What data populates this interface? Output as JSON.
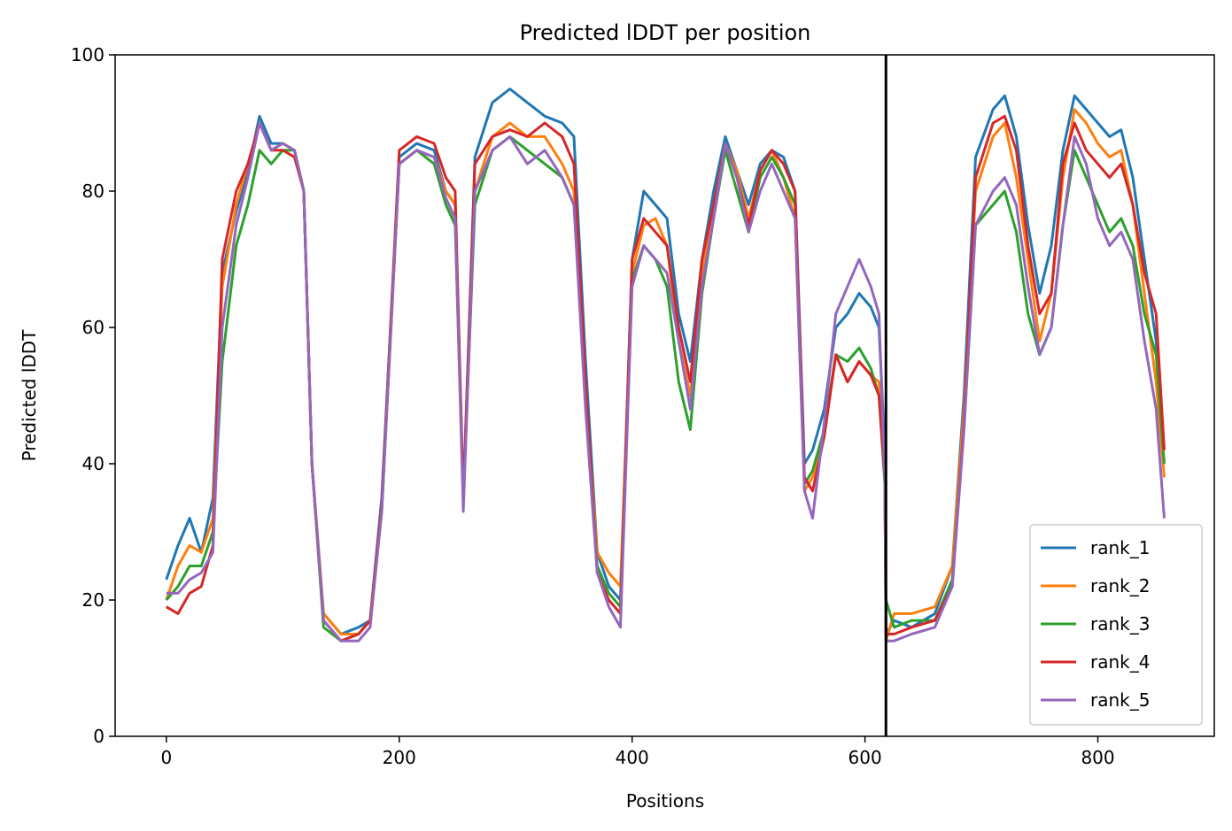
{
  "chart_data": {
    "type": "line",
    "title": "Predicted lDDT per position",
    "xlabel": "Positions",
    "ylabel": "Predicted lDDT",
    "xlim": [
      -44,
      900
    ],
    "ylim": [
      0,
      100
    ],
    "xticks": [
      0,
      200,
      400,
      600,
      800
    ],
    "yticks": [
      0,
      20,
      40,
      60,
      80,
      100
    ],
    "grid": false,
    "legend_position": "lower right",
    "vline_x": 618,
    "x_knots": [
      0,
      10,
      20,
      30,
      40,
      48,
      60,
      70,
      80,
      90,
      100,
      110,
      118,
      125,
      135,
      150,
      165,
      175,
      185,
      200,
      215,
      230,
      240,
      248,
      255,
      265,
      280,
      295,
      310,
      325,
      340,
      350,
      360,
      370,
      380,
      390,
      400,
      410,
      420,
      430,
      440,
      450,
      460,
      470,
      480,
      490,
      500,
      510,
      520,
      530,
      540,
      548,
      555,
      565,
      575,
      585,
      595,
      605,
      612,
      617,
      618,
      625,
      640,
      660,
      675,
      685,
      695,
      710,
      720,
      730,
      740,
      750,
      760,
      770,
      780,
      790,
      800,
      810,
      820,
      830,
      840,
      850,
      857
    ],
    "series": [
      {
        "name": "rank_1",
        "color": "#1f77b4",
        "values": [
          23,
          28,
          32,
          27,
          35,
          68,
          77,
          83,
          91,
          87,
          87,
          86,
          80,
          40,
          18,
          15,
          16,
          17,
          35,
          85,
          87,
          86,
          80,
          78,
          35,
          85,
          93,
          95,
          93,
          91,
          90,
          88,
          55,
          27,
          22,
          20,
          70,
          80,
          78,
          76,
          62,
          55,
          70,
          80,
          88,
          83,
          78,
          84,
          86,
          85,
          80,
          40,
          42,
          48,
          60,
          62,
          65,
          63,
          60,
          42,
          15,
          17,
          16,
          18,
          25,
          50,
          85,
          92,
          94,
          88,
          75,
          65,
          72,
          86,
          94,
          92,
          90,
          88,
          89,
          82,
          70,
          58,
          42
        ]
      },
      {
        "name": "rank_2",
        "color": "#ff7f0e",
        "values": [
          20,
          25,
          28,
          27,
          32,
          66,
          78,
          84,
          90,
          86,
          87,
          86,
          80,
          40,
          18,
          15,
          15,
          17,
          33,
          84,
          86,
          85,
          80,
          78,
          35,
          80,
          88,
          90,
          88,
          88,
          84,
          80,
          50,
          27,
          24,
          22,
          68,
          75,
          76,
          72,
          58,
          50,
          68,
          78,
          87,
          83,
          76,
          83,
          86,
          82,
          76,
          36,
          38,
          44,
          56,
          52,
          55,
          53,
          52,
          38,
          14,
          18,
          18,
          19,
          25,
          48,
          80,
          88,
          90,
          82,
          70,
          58,
          65,
          82,
          92,
          90,
          87,
          85,
          86,
          78,
          65,
          52,
          38
        ]
      },
      {
        "name": "rank_3",
        "color": "#2ca02c",
        "values": [
          20,
          22,
          25,
          25,
          30,
          55,
          72,
          78,
          86,
          84,
          86,
          86,
          80,
          40,
          16,
          14,
          15,
          17,
          33,
          84,
          86,
          84,
          78,
          75,
          35,
          78,
          86,
          88,
          86,
          84,
          82,
          78,
          50,
          25,
          21,
          19,
          67,
          72,
          70,
          66,
          52,
          45,
          65,
          76,
          86,
          80,
          74,
          82,
          85,
          82,
          78,
          37,
          39,
          45,
          56,
          55,
          57,
          54,
          50,
          37,
          20,
          16,
          17,
          17,
          23,
          45,
          75,
          78,
          80,
          74,
          62,
          56,
          60,
          75,
          86,
          82,
          78,
          74,
          76,
          72,
          62,
          56,
          40
        ]
      },
      {
        "name": "rank_4",
        "color": "#d62728",
        "values": [
          19,
          18,
          21,
          22,
          28,
          70,
          80,
          84,
          90,
          86,
          86,
          85,
          80,
          40,
          17,
          14,
          15,
          17,
          34,
          86,
          88,
          87,
          82,
          80,
          35,
          84,
          88,
          89,
          88,
          90,
          88,
          84,
          52,
          24,
          20,
          18,
          70,
          76,
          74,
          72,
          60,
          52,
          70,
          78,
          87,
          82,
          75,
          83,
          86,
          84,
          80,
          38,
          36,
          44,
          56,
          52,
          55,
          53,
          50,
          38,
          15,
          15,
          16,
          17,
          22,
          46,
          82,
          90,
          91,
          86,
          72,
          62,
          65,
          84,
          90,
          86,
          84,
          82,
          84,
          78,
          68,
          62,
          42
        ]
      },
      {
        "name": "rank_5",
        "color": "#9467bd",
        "values": [
          21,
          21,
          23,
          24,
          27,
          60,
          75,
          82,
          90,
          86,
          87,
          86,
          80,
          40,
          17,
          14,
          14,
          16,
          33,
          84,
          86,
          85,
          79,
          76,
          33,
          80,
          86,
          88,
          84,
          86,
          82,
          78,
          48,
          24,
          19,
          16,
          66,
          72,
          70,
          68,
          58,
          48,
          66,
          76,
          87,
          82,
          74,
          80,
          84,
          80,
          76,
          36,
          32,
          46,
          62,
          66,
          70,
          66,
          62,
          38,
          14,
          14,
          15,
          16,
          22,
          45,
          75,
          80,
          82,
          78,
          66,
          56,
          60,
          75,
          88,
          84,
          76,
          72,
          74,
          70,
          58,
          48,
          32
        ]
      }
    ]
  }
}
